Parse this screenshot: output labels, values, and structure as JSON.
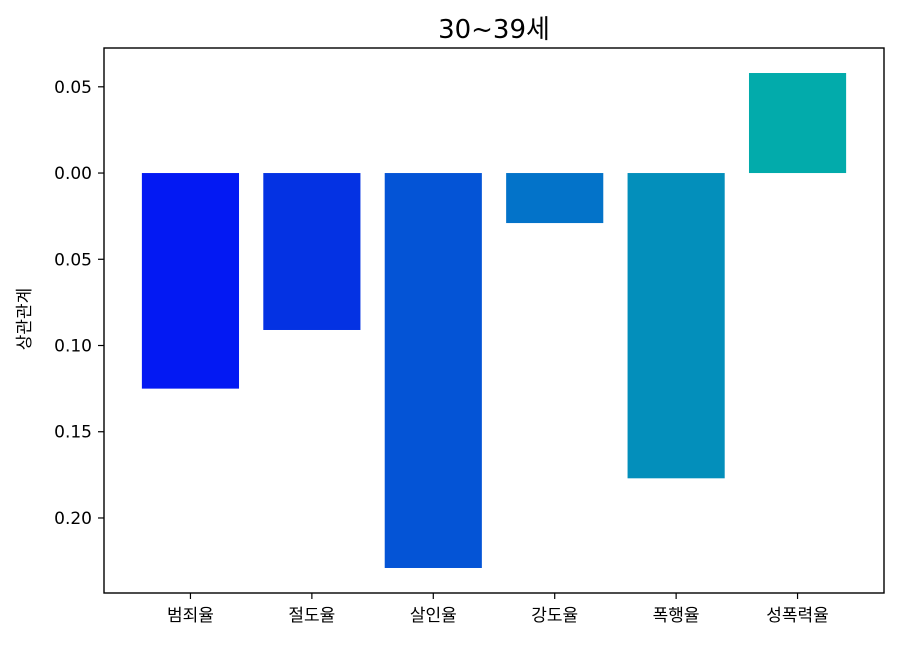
{
  "chart_data": {
    "type": "bar",
    "title": "30~39세",
    "xlabel": "",
    "ylabel": "상관관계",
    "categories": [
      "범죄율",
      "절도율",
      "살인율",
      "강도율",
      "폭행율",
      "성폭력율"
    ],
    "values": [
      -0.125,
      -0.091,
      -0.229,
      -0.029,
      -0.177,
      0.058
    ],
    "colors": [
      "#0319f3",
      "#0432e3",
      "#0454d6",
      "#0373c9",
      "#038fbb",
      "#02abab"
    ],
    "ylim": [
      -0.2435,
      0.0725
    ],
    "yticks": [
      0.05,
      0.0,
      -0.05,
      -0.1,
      -0.15,
      -0.2
    ],
    "ytick_labels": [
      "0.05",
      "0.00",
      "0.05",
      "0.10",
      "0.15",
      "0.20"
    ],
    "grid": false,
    "legend": false
  }
}
